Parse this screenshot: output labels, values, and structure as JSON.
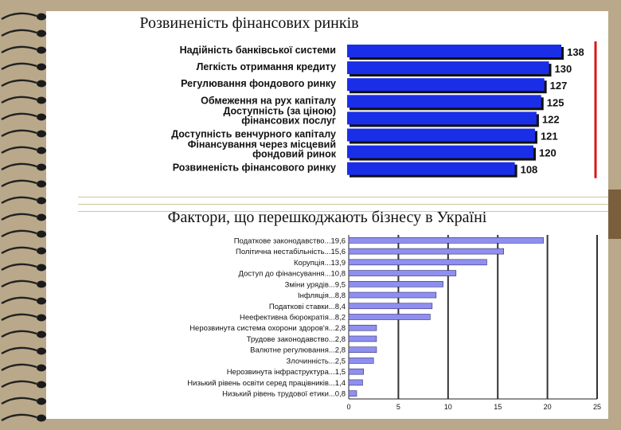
{
  "chart_data": [
    {
      "type": "bar",
      "orientation": "horizontal",
      "title": "Розвиненість фінансових ринків",
      "categories": [
        [
          "Надійність банківської системи"
        ],
        [
          "Легкість отримання кредиту"
        ],
        [
          "Регулювання фондового ринку"
        ],
        [
          "Обмеження на рух капіталу"
        ],
        [
          "Доступність (за ціною)",
          "фінансових послуг"
        ],
        [
          "Доступність венчурного капіталу"
        ],
        [
          "Фінансування через місцевий",
          "фондовий ринок"
        ],
        [
          "Розвиненість фінансового ринку"
        ]
      ],
      "values": [
        138,
        130,
        127,
        125,
        122,
        121,
        120,
        108
      ],
      "colors": {
        "bar": "#1a2ee8",
        "shadow": "#111111",
        "marker": "#d81818"
      }
    },
    {
      "type": "bar",
      "orientation": "horizontal",
      "title": "Фактори, що перешкоджають бізнесу в Україні",
      "categories": [
        "Податкове законодавство...19,6",
        "Політична нестабільність...15,6",
        "Корупція...13,9",
        "Доступ до фінансування...10,8",
        "Зміни урядів...9,5",
        "Інфляція...8,8",
        "Податкові ставки...8,4",
        "Неефективна бюрократія...8,2",
        "Нерозвинута система охорони здоров'я...2,8",
        "Трудове законодавство...2,8",
        "Валютне регулювання...2,8",
        "Злочинність...2,5",
        "Нерозвинута інфраструктура...1,5",
        "Низький рівень освіти серед працівників...1,4",
        "Низький рівень трудової етики...0,8"
      ],
      "values": [
        19.6,
        15.6,
        13.9,
        10.8,
        9.5,
        8.8,
        8.4,
        8.2,
        2.8,
        2.8,
        2.8,
        2.5,
        1.5,
        1.4,
        0.8
      ],
      "xlim": [
        0,
        25
      ],
      "xticks": [
        "0",
        "5",
        "10",
        "15",
        "20",
        "25"
      ],
      "grid": true,
      "colors": {
        "bar": "#8f8ff0",
        "bar_border": "#303070",
        "grid": "#333333"
      }
    }
  ]
}
